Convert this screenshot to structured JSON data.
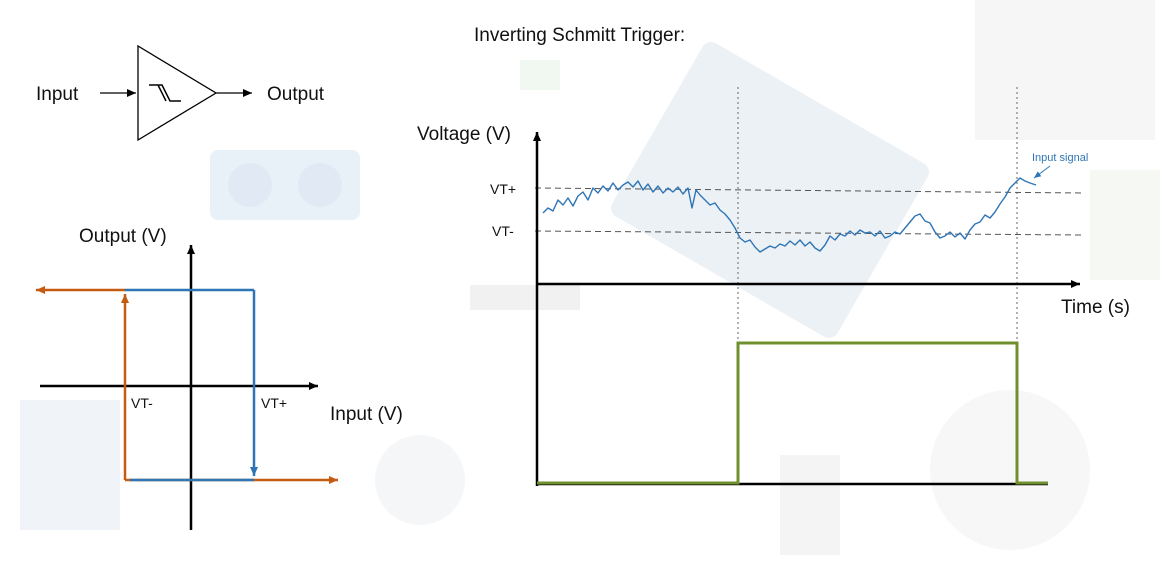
{
  "title": "Inverting Schmitt Trigger:",
  "symbol": {
    "input_label": "Input",
    "output_label": "Output",
    "icon": "schmitt-hysteresis-icon"
  },
  "hysteresis": {
    "y_label": "Output (V)",
    "x_label": "Input (V)",
    "vt_minus": "VT-",
    "vt_plus": "VT+",
    "colors": {
      "rising": "#2e75b6",
      "falling": "#c55a11"
    }
  },
  "timing": {
    "y_label": "Voltage (V)",
    "x_label": "Time (s)",
    "vt_plus": "VT+",
    "vt_minus": "VT-",
    "signal_label": "Input signal",
    "colors": {
      "input": "#2e75b6",
      "output": "#70902e",
      "threshold": "#555555"
    }
  },
  "colors": {
    "axis": "#000000",
    "background_art": "#e6e9ee"
  }
}
